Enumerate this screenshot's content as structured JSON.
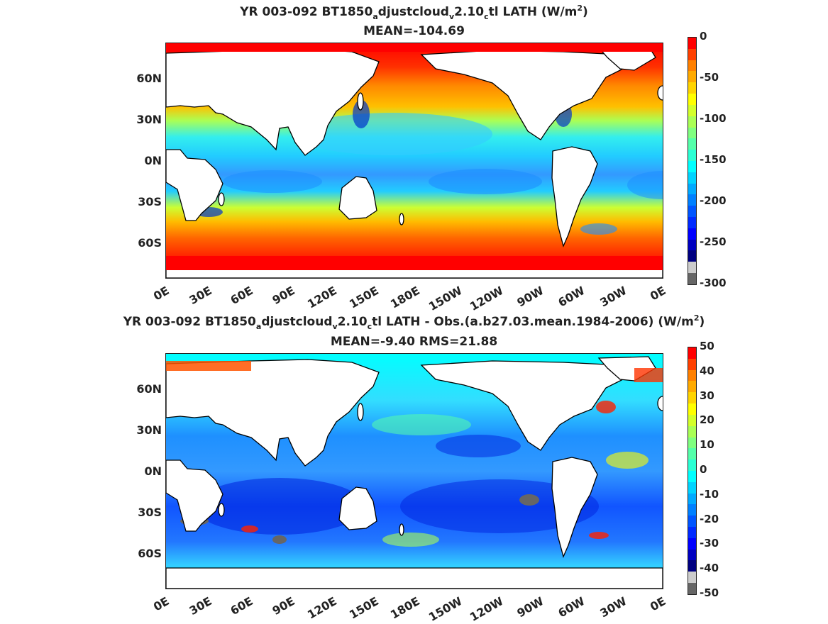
{
  "chart_data": [
    {
      "type": "heatmap",
      "title_parts": [
        "YR 003-092 BT1850",
        "a",
        "djustcloud",
        "v",
        "2.10",
        "c",
        "tl  LATH (W/m",
        "2",
        ")"
      ],
      "subtitle": "MEAN=-104.69",
      "lat_ticks": [
        "60N",
        "30N",
        "0N",
        "30S",
        "60S"
      ],
      "lon_ticks": [
        "0E",
        "30E",
        "60E",
        "90E",
        "120E",
        "150E",
        "180E",
        "150W",
        "120W",
        "90W",
        "60W",
        "30W",
        "0E"
      ],
      "colorbar": {
        "ticks": [
          "0",
          "-50",
          "-100",
          "-150",
          "-200",
          "-250",
          "-300"
        ],
        "range": [
          -300,
          0
        ],
        "colors": [
          "#ff0000",
          "#ff4000",
          "#ff8000",
          "#ffaa00",
          "#ffd400",
          "#ffff00",
          "#d4ff2a",
          "#aaff55",
          "#80ff80",
          "#55ffaa",
          "#2affd4",
          "#00ffff",
          "#00d4ff",
          "#00aaff",
          "#0080ff",
          "#0055ff",
          "#002aff",
          "#0000ff",
          "#0000c0",
          "#000080",
          "#cccccc",
          "#666666"
        ]
      }
    },
    {
      "type": "heatmap",
      "title_parts": [
        "YR 003-092 BT1850",
        "a",
        "djustcloud",
        "v",
        "2.10",
        "c",
        "tl LATH - Obs.(a.b27.03.mean.1984-2006) (W/m",
        "2",
        ")"
      ],
      "subtitle": "MEAN=-9.40 RMS=21.88",
      "lat_ticks": [
        "60N",
        "30N",
        "0N",
        "30S",
        "60S"
      ],
      "lon_ticks": [
        "0E",
        "30E",
        "60E",
        "90E",
        "120E",
        "150E",
        "180E",
        "150W",
        "120W",
        "90W",
        "60W",
        "30W",
        "0E"
      ],
      "colorbar": {
        "ticks": [
          "50",
          "40",
          "30",
          "20",
          "10",
          "0",
          "-10",
          "-20",
          "-30",
          "-40",
          "-50"
        ],
        "range": [
          -50,
          50
        ],
        "colors": [
          "#ff0000",
          "#ff4000",
          "#ff8000",
          "#ffaa00",
          "#ffd400",
          "#ffff00",
          "#d4ff2a",
          "#aaff55",
          "#80ff80",
          "#55ffaa",
          "#2affd4",
          "#00ffff",
          "#00d4ff",
          "#00aaff",
          "#0080ff",
          "#0055ff",
          "#002aff",
          "#0000ff",
          "#0000c0",
          "#000080",
          "#cccccc",
          "#666666"
        ]
      }
    }
  ]
}
